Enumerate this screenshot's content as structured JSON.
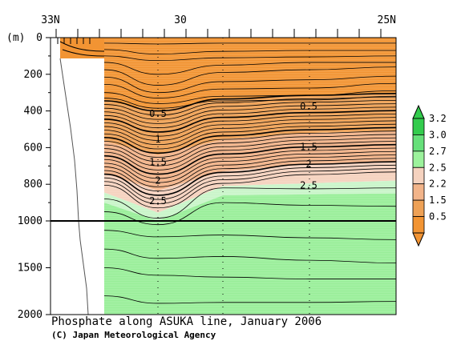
{
  "chart_data": {
    "type": "contour",
    "title": "Phosphate along ASUKA line, January 2006",
    "credit": "(C) Japan Meteorological Agency",
    "ylabel": "(m)",
    "xlabel": "",
    "x_ticks": [
      "33N",
      "30",
      "25N"
    ],
    "x_range": [
      "33N",
      "25N"
    ],
    "y_ticks": [
      0,
      200,
      400,
      600,
      800,
      1000,
      1500,
      2000
    ],
    "y_range": [
      0,
      2000
    ],
    "y_scale": "piecewise linear (0–1000 m expanded, 1000–2000 m compressed)",
    "contour_levels": [
      0.5,
      1,
      1.5,
      2,
      2.5
    ],
    "contour_labels_left": [
      {
        "value": "0.5",
        "depth": 415
      },
      {
        "value": "1",
        "depth": 555
      },
      {
        "value": "1.5",
        "depth": 680
      },
      {
        "value": "2",
        "depth": 780
      },
      {
        "value": "2.5",
        "depth": 890
      }
    ],
    "contour_labels_right": [
      {
        "value": "0.5",
        "depth": 375
      },
      {
        "value": "1.5",
        "depth": 595
      },
      {
        "value": "2",
        "depth": 690
      },
      {
        "value": "2.5",
        "depth": 805
      }
    ],
    "colorbar": {
      "labels": [
        "3.2",
        "3.0",
        "2.7",
        "2.5",
        "2.2",
        "1.5",
        "0.5"
      ],
      "colors": [
        "#33cc4d",
        "#66e07a",
        "#9cf29c",
        "#f5d2bf",
        "#f2b48a",
        "#eea156",
        "#f29433"
      ],
      "orientation": "vertical",
      "placement": "right"
    },
    "colors": {
      "low": "#f29433",
      "mid_low": "#eea156",
      "mid": "#f2b48a",
      "transition": "#f5d2bf",
      "high": "#9cf29c",
      "deep": "#99ee99"
    },
    "grid": "dotted station lines"
  }
}
